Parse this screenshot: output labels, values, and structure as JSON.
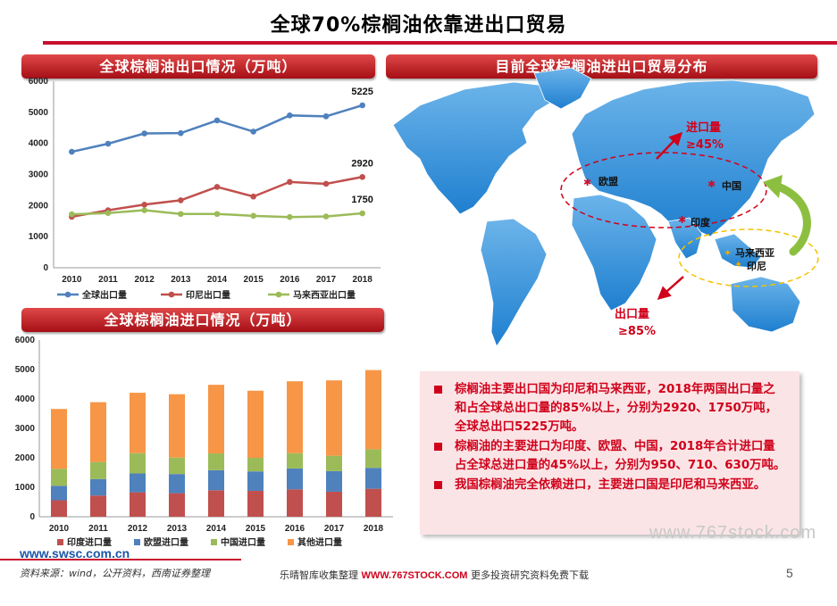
{
  "page": {
    "title": "全球70%棕榈油依靠进出口贸易",
    "page_number": "5"
  },
  "colors": {
    "accent": "#c8102e",
    "indonesia": "#c0504d",
    "malaysia": "#9bbb59",
    "global": "#4f81bd",
    "other": "#f79646",
    "textbox_bg": "#fbe4e6"
  },
  "export_panel": {
    "title": "全球棕榈油出口情况（万吨）"
  },
  "import_panel": {
    "title": "全球棕榈油进口情况（万吨）"
  },
  "trade_panel": {
    "title": "目前全球棕榈油进出口贸易分布",
    "labels": {
      "import_label": "进口量",
      "import_share": "≥45%",
      "export_label": "出口量",
      "export_share": "≥85%",
      "eu": "欧盟",
      "china": "中国",
      "india": "印度",
      "malaysia": "马来西亚",
      "indonesia": "印尼"
    }
  },
  "chart_data": [
    {
      "type": "line",
      "title": "全球棕榈油出口情况（万吨）",
      "x": [
        "2010",
        "2011",
        "2012",
        "2013",
        "2014",
        "2015",
        "2016",
        "2017",
        "2018"
      ],
      "ylim": [
        0,
        6000
      ],
      "yticks": [
        "0",
        "1000",
        "2000",
        "3000",
        "4000",
        "5000",
        "6000"
      ],
      "grid": false,
      "legend": "bottom",
      "series": [
        {
          "name": "全球出口量",
          "color": "#4f81bd",
          "values": [
            3730,
            3990,
            4320,
            4330,
            4740,
            4380,
            4900,
            4870,
            5225
          ],
          "end_label": "5225"
        },
        {
          "name": "印尼出口量",
          "color": "#c0504d",
          "values": [
            1640,
            1850,
            2030,
            2170,
            2600,
            2290,
            2760,
            2700,
            2920
          ],
          "end_label": "2920"
        },
        {
          "name": "马来西亚出口量",
          "color": "#9bbb59",
          "values": [
            1720,
            1760,
            1850,
            1730,
            1730,
            1670,
            1630,
            1650,
            1750
          ],
          "end_label": "1750"
        }
      ]
    },
    {
      "type": "bar",
      "stacked": true,
      "title": "全球棕榈油进口情况（万吨）",
      "categories": [
        "2010",
        "2011",
        "2012",
        "2013",
        "2014",
        "2015",
        "2016",
        "2017",
        "2018"
      ],
      "ylim": [
        0,
        6000
      ],
      "yticks": [
        "0",
        "1000",
        "2000",
        "3000",
        "4000",
        "5000",
        "6000"
      ],
      "grid": false,
      "legend": "bottom",
      "series": [
        {
          "name": "印度进口量",
          "color": "#c0504d",
          "values": [
            560,
            720,
            830,
            800,
            900,
            880,
            930,
            850,
            950
          ]
        },
        {
          "name": "欧盟进口量",
          "color": "#4f81bd",
          "values": [
            490,
            560,
            640,
            650,
            680,
            660,
            710,
            700,
            710
          ]
        },
        {
          "name": "中国进口量",
          "color": "#9bbb59",
          "values": [
            580,
            580,
            690,
            560,
            570,
            460,
            520,
            520,
            630
          ]
        },
        {
          "name": "其他进口量",
          "color": "#f79646",
          "values": [
            2030,
            2030,
            2050,
            2150,
            2330,
            2280,
            2440,
            2560,
            2690
          ]
        }
      ]
    }
  ],
  "notes": [
    "棕榈油主要出口国为印尼和马来西亚，2018年两国出口量之和占全球总出口量的85%以上，分别为2920、1750万吨，全球总出口5225万吨。",
    "棕榈油的主要进口为印度、欧盟、中国，2018年合计进口量占全球总进口量的45%以上，分别为950、710、630万吨。",
    "我国棕榈油完全依赖进口，主要进口国是印尼和马来西亚。"
  ],
  "footer": {
    "url": "www.swsc.com.cn",
    "source": "资料来源：wind，公开资料，西南证券整理",
    "mid_prefix": "乐晴智库收集整理",
    "mid_brand": "WWW.767STOCK.COM",
    "mid_suffix": "更多投资研究资料免费下载",
    "watermark": "www.767stock.com"
  }
}
